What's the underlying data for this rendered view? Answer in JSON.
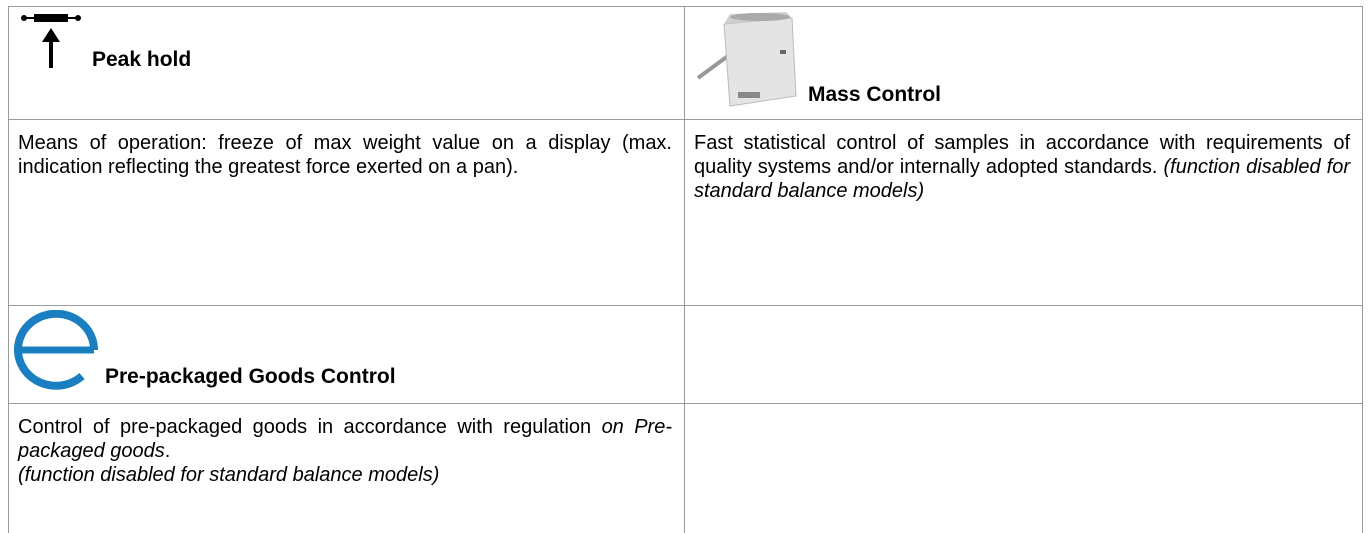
{
  "table": {
    "rows": [
      {
        "left": {
          "title": "Peak hold"
        },
        "right": {
          "title": "Mass Control"
        }
      },
      {
        "left": {
          "text": "Means of operation: freeze of max weight value on a display (max. indication reflecting the greatest force exerted on a pan)."
        },
        "right": {
          "text": "Fast statistical control of samples in accordance with requirements of quality systems and/or internally adopted standards.",
          "note": "(function disabled for standard balance models)"
        }
      },
      {
        "left": {
          "title": "Pre-packaged Goods Control"
        }
      },
      {
        "left": {
          "text": "Control of pre-packaged goods in accordance with regulation",
          "emphasis": "on Pre-packaged goods",
          "end": ".",
          "note": "(function disabled for standard balance models)"
        }
      }
    ]
  }
}
